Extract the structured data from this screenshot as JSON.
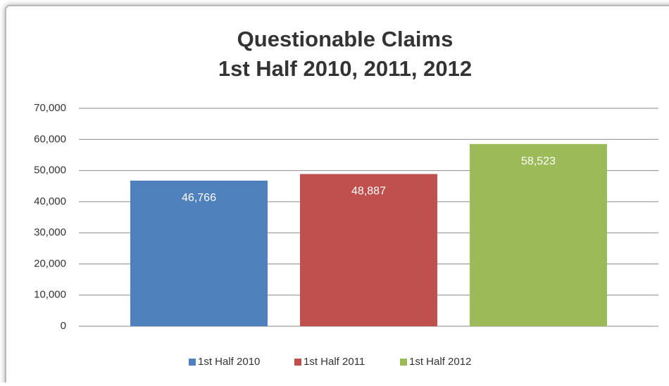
{
  "chart_data": {
    "type": "bar",
    "title": [
      "Questionable Claims",
      "1st Half 2010, 2011, 2012"
    ],
    "series": [
      {
        "name": "1st Half 2010",
        "color": "#4f81bd",
        "values": [
          46766
        ],
        "value_labels": [
          "46,766"
        ]
      },
      {
        "name": "1st Half 2011",
        "color": "#c0504d",
        "values": [
          48887
        ],
        "value_labels": [
          "48,887"
        ]
      },
      {
        "name": "1st Half 2012",
        "color": "#9bbb59",
        "values": [
          58523
        ],
        "value_labels": [
          "58,523"
        ]
      }
    ],
    "ylim": [
      0,
      70000
    ],
    "yticks": [
      0,
      {
        "value": 10000,
        "label": "10,000"
      },
      {
        "value": 20000,
        "label": "20,000"
      },
      {
        "value": 30000,
        "label": "30,000"
      },
      {
        "value": 40000,
        "label": "40,000"
      },
      {
        "value": 50000,
        "label": "50,000"
      },
      {
        "value": 60000,
        "label": "60,000"
      },
      {
        "value": 70000,
        "label": "70,000"
      }
    ],
    "grid": true,
    "legend": "bottom"
  }
}
